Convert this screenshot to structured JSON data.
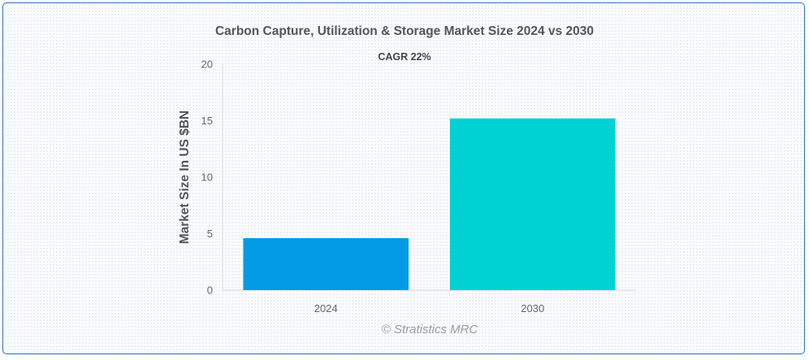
{
  "chart_data": {
    "type": "bar",
    "title": "Carbon Capture, Utilization & Storage Market Size 2024 vs 2030",
    "subtitle": "CAGR 22%",
    "xlabel": "",
    "ylabel": "Market Size In US $BN",
    "categories": [
      "2024",
      "2030"
    ],
    "values": [
      4.6,
      15.2
    ],
    "ylim": [
      0,
      20
    ],
    "yticks": [
      0,
      5,
      10,
      15,
      20
    ],
    "colors": [
      "#039be5",
      "#00d2d3"
    ],
    "grid": false,
    "legend": "none"
  },
  "watermark": "© Stratistics MRC",
  "colors": {
    "frame_border": "#2f6fc4",
    "axis": "#d8d8d8"
  }
}
